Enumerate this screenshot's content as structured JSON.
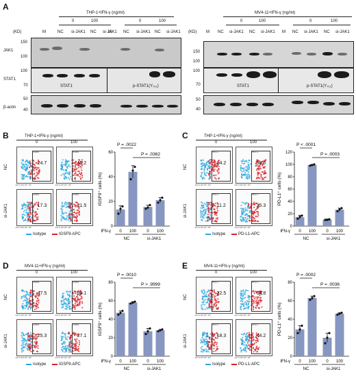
{
  "panel_letters": {
    "A": "A",
    "B": "B",
    "C": "C",
    "D": "D",
    "E": "E"
  },
  "western": {
    "left_title": "THP-1+IFN-γ (ng/ml)",
    "right_title": "MV4-11+IFN-γ (ng/ml)",
    "kd": "(KD)",
    "marker": "M",
    "conc": [
      "0",
      "100",
      "0",
      "100"
    ],
    "lanes": [
      "NC",
      "si-JAK1",
      "NC",
      "si-JAK1"
    ],
    "rows": [
      "JAK1",
      "STAT1",
      "β-actin"
    ],
    "left_mw": {
      "jak1": [
        "150",
        "100"
      ],
      "stat1": [
        "100",
        "70"
      ],
      "actin": [
        "50",
        "40"
      ]
    },
    "right_mw": {
      "jak1": [
        "150",
        "100"
      ],
      "stat1": [
        "100",
        "70"
      ],
      "actin": [
        "50",
        "40"
      ]
    },
    "stat1_label": "STAT1",
    "pstat1_label": "p-STAT1(Y₇₀₁)"
  },
  "panels": [
    {
      "letter": "B",
      "title": "THP-1+IFN-γ (ng/ml)",
      "col0": "0",
      "col100": "100",
      "rows": [
        "NC",
        "si-JAK1"
      ],
      "gate_label": "IGSF9",
      "values": [
        "24.7",
        "48.2",
        "17.3",
        "21.5"
      ],
      "legend": [
        "Isotype",
        "IGSF9-APC"
      ],
      "xticks": [
        "-10³",
        "0",
        "10³",
        "10⁴",
        "10⁵"
      ],
      "ylabel": "IGSF9⁺ cells (%)",
      "chart_data": {
        "type": "bar",
        "categories": [
          "NC 0",
          "NC 100",
          "si-JAK1 0",
          "si-JAK1 100"
        ],
        "values": [
          13.5,
          44,
          15.5,
          21
        ],
        "points": [
          [
            10,
            14,
            16
          ],
          [
            38,
            45,
            48
          ],
          [
            14,
            15,
            17
          ],
          [
            19,
            21,
            23
          ]
        ],
        "errors": [
          3,
          5,
          1.5,
          2
        ],
        "ylim": [
          0,
          60
        ],
        "yticks": [
          "0",
          "20",
          "40",
          "60"
        ],
        "ylabel": "IGSF9⁺ cells (%)",
        "xlabel": "IFN-γ",
        "xticklabels": [
          "0",
          "100",
          "0",
          "100"
        ],
        "groups": [
          "NC",
          "si-JAK1"
        ],
        "pvalues": [
          "P = .0022",
          "P = .0362"
        ]
      }
    },
    {
      "letter": "C",
      "title": "THP-1+IFN-γ (ng/ml)",
      "col0": "0",
      "col100": "100",
      "rows": [
        "NC",
        "si-JAK1"
      ],
      "gate_label": "PD-L1",
      "values": [
        "14.2",
        "98.6",
        "11.2",
        "25.3"
      ],
      "legend": [
        "Isotype",
        "PD-L1-APC"
      ],
      "xticks": [
        "-10³",
        "0",
        "10³",
        "10⁴",
        "10⁵"
      ],
      "ylabel": "PD-L1⁺ cells (%)",
      "chart_data": {
        "type": "bar",
        "categories": [
          "NC 0",
          "NC 100",
          "si-JAK1 0",
          "si-JAK1 100"
        ],
        "values": [
          14.5,
          99,
          10.5,
          26.5
        ],
        "points": [
          [
            12,
            15,
            17
          ],
          [
            98,
            99,
            100
          ],
          [
            10,
            10,
            11
          ],
          [
            24,
            27,
            29
          ]
        ],
        "errors": [
          3,
          1,
          1,
          2.5
        ],
        "ylim": [
          0,
          120
        ],
        "yticks": [
          "0",
          "20",
          "40",
          "60",
          "80",
          "100",
          "120"
        ],
        "ylabel": "PD-L1⁺ cells (%)",
        "xlabel": "IFN-γ",
        "xticklabels": [
          "0",
          "100",
          "0",
          "100"
        ],
        "groups": [
          "NC",
          "si-JAK1"
        ],
        "pvalues": [
          "P < .0001",
          "P = .0003"
        ]
      }
    },
    {
      "letter": "D",
      "title": "MV4-11+IFN-γ (ng/ml)",
      "col0": "0",
      "col100": "100",
      "rows": [
        "NC",
        "si-JAK1"
      ],
      "gate_label": "IGSF9",
      "values": [
        "47.5",
        "58.1",
        "25.3",
        "27.1"
      ],
      "legend": [
        "Isotype",
        "IGSF9-APC"
      ],
      "xticks": [
        "-10³",
        "0",
        "10³",
        "10⁴",
        "10⁵"
      ],
      "ylabel": "IGSF9⁺ cells (%)",
      "chart_data": {
        "type": "bar",
        "categories": [
          "NC 0",
          "NC 100",
          "si-JAK1 0",
          "si-JAK1 100"
        ],
        "values": [
          47,
          58,
          27,
          28
        ],
        "points": [
          [
            45,
            47,
            49
          ],
          [
            57,
            58,
            59
          ],
          [
            24,
            27,
            30
          ],
          [
            27,
            28,
            29
          ]
        ],
        "errors": [
          2,
          1,
          3,
          1
        ],
        "ylim": [
          0,
          80
        ],
        "yticks": [
          "0",
          "20",
          "40",
          "60",
          "80"
        ],
        "ylabel": "IGSF9⁺ cells (%)",
        "xlabel": "IFN-γ",
        "xticklabels": [
          "0",
          "100",
          "0",
          "100"
        ],
        "groups": [
          "NC",
          "si-JAK1"
        ],
        "pvalues": [
          "P = .0010",
          "P > .9999"
        ]
      }
    },
    {
      "letter": "E",
      "title": "MV4-11+IFN-γ (ng/ml)",
      "col0": "0",
      "col100": "100",
      "rows": [
        "NC",
        "si-JAK1"
      ],
      "gate_label": "PD-L1",
      "values": [
        "32.5",
        "64.8",
        "18.3",
        "44.2"
      ],
      "legend": [
        "Isotype",
        "PD-L1-APC"
      ],
      "xticks": [
        "-10³",
        "0",
        "10³",
        "10⁴",
        "10⁵"
      ],
      "ylabel": "PD-L1⁺ cells (%)",
      "chart_data": {
        "type": "bar",
        "categories": [
          "NC 0",
          "NC 100",
          "si-JAK1 0",
          "si-JAK1 100"
        ],
        "values": [
          29,
          63,
          20,
          46
        ],
        "points": [
          [
            25,
            29,
            33
          ],
          [
            61,
            63,
            65
          ],
          [
            14,
            20,
            25
          ],
          [
            45,
            46,
            47
          ]
        ],
        "errors": [
          4,
          2,
          5,
          1
        ],
        "ylim": [
          0,
          80
        ],
        "yticks": [
          "0",
          "20",
          "40",
          "60",
          "80"
        ],
        "ylabel": "PD-L1⁺ cells (%)",
        "xlabel": "IFN-γ",
        "xticklabels": [
          "0",
          "100",
          "0",
          "100"
        ],
        "groups": [
          "NC",
          "si-JAK1"
        ],
        "pvalues": [
          "P = .0002",
          "P = .0036"
        ]
      }
    }
  ],
  "colors": {
    "bar": "#8797c2",
    "iso": "#29a8e0",
    "apc": "#d81f26",
    "bandDark": "#1b1b1b"
  }
}
